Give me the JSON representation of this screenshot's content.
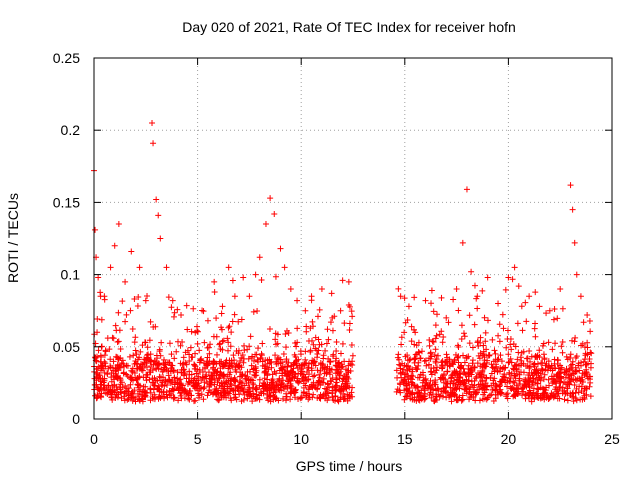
{
  "chart_data": {
    "type": "scatter",
    "title": "Day 020 of 2021, Rate Of TEC Index for receiver hofn",
    "xlabel": "GPS time / hours",
    "ylabel": "ROTI / TECUs",
    "xlim": [
      0,
      25
    ],
    "ylim": [
      0,
      0.25
    ],
    "x_ticks": [
      0,
      5,
      10,
      15,
      20,
      25
    ],
    "x_tick_labels": [
      "0",
      "5",
      "10",
      "15",
      "20",
      "25"
    ],
    "y_ticks": [
      0,
      0.05,
      0.1,
      0.15,
      0.2,
      0.25
    ],
    "y_tick_labels": [
      "0",
      "0.05",
      "0.1",
      "0.15",
      "0.2",
      "0.25"
    ],
    "grid": true,
    "marker": "+",
    "color": "#ff0000",
    "data_gap_hours": [
      12.5,
      14.6
    ],
    "series": [
      {
        "points": [
          [
            0.0,
            0.172
          ],
          [
            0.05,
            0.131
          ],
          [
            0.1,
            0.112
          ],
          [
            0.2,
            0.098
          ],
          [
            0.5,
            0.085
          ],
          [
            0.8,
            0.105
          ],
          [
            1.0,
            0.12
          ],
          [
            1.2,
            0.135
          ],
          [
            1.5,
            0.095
          ],
          [
            1.8,
            0.116
          ],
          [
            2.2,
            0.105
          ],
          [
            2.5,
            0.082
          ],
          [
            2.8,
            0.205
          ],
          [
            2.85,
            0.191
          ],
          [
            3.0,
            0.152
          ],
          [
            3.1,
            0.141
          ],
          [
            3.2,
            0.125
          ],
          [
            3.5,
            0.105
          ],
          [
            3.8,
            0.082
          ],
          [
            4.2,
            0.072
          ],
          [
            4.5,
            0.062
          ],
          [
            5.0,
            0.052
          ],
          [
            5.5,
            0.068
          ],
          [
            5.8,
            0.095
          ],
          [
            6.2,
            0.078
          ],
          [
            6.5,
            0.105
          ],
          [
            6.8,
            0.085
          ],
          [
            7.2,
            0.098
          ],
          [
            7.5,
            0.085
          ],
          [
            7.8,
            0.1
          ],
          [
            8.0,
            0.112
          ],
          [
            8.3,
            0.135
          ],
          [
            8.5,
            0.153
          ],
          [
            8.7,
            0.142
          ],
          [
            9.0,
            0.118
          ],
          [
            9.2,
            0.105
          ],
          [
            9.5,
            0.09
          ],
          [
            9.8,
            0.082
          ],
          [
            10.2,
            0.075
          ],
          [
            10.5,
            0.085
          ],
          [
            11.0,
            0.09
          ],
          [
            11.5,
            0.07
          ],
          [
            12.0,
            0.096
          ],
          [
            12.3,
            0.095
          ],
          [
            14.8,
            0.085
          ],
          [
            15.2,
            0.078
          ],
          [
            15.5,
            0.06
          ],
          [
            16.0,
            0.082
          ],
          [
            16.5,
            0.065
          ],
          [
            17.0,
            0.07
          ],
          [
            17.5,
            0.09
          ],
          [
            17.8,
            0.122
          ],
          [
            18.0,
            0.159
          ],
          [
            18.2,
            0.102
          ],
          [
            18.5,
            0.085
          ],
          [
            19.0,
            0.098
          ],
          [
            19.5,
            0.08
          ],
          [
            20.0,
            0.098
          ],
          [
            20.3,
            0.105
          ],
          [
            20.5,
            0.092
          ],
          [
            21.0,
            0.085
          ],
          [
            21.5,
            0.078
          ],
          [
            22.0,
            0.075
          ],
          [
            22.5,
            0.09
          ],
          [
            23.0,
            0.162
          ],
          [
            23.1,
            0.145
          ],
          [
            23.2,
            0.122
          ],
          [
            23.3,
            0.1
          ],
          [
            23.5,
            0.085
          ],
          [
            23.8,
            0.072
          ]
        ]
      }
    ]
  }
}
